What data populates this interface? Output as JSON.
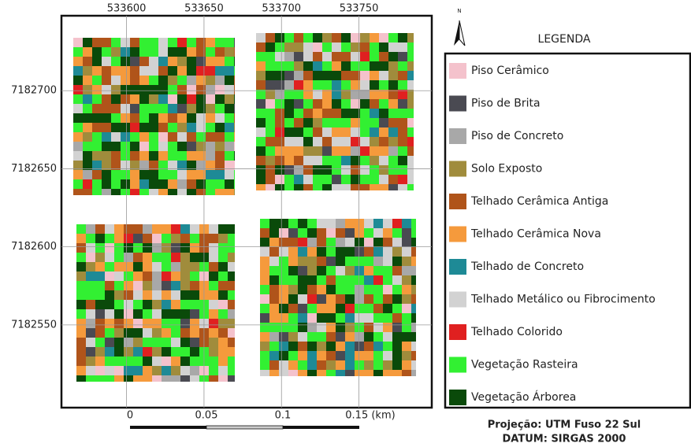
{
  "map": {
    "x_lim": [
      533558,
      533797
    ],
    "x_ticks": [
      533600,
      533650,
      533700,
      533750
    ],
    "y_lim": [
      7182497,
      7182748
    ],
    "y_ticks": [
      7182700,
      7182650,
      7182600,
      7182550
    ],
    "grid": true,
    "north_label": "N",
    "legend": {
      "title": "LEGENDA",
      "entries": [
        {
          "name": "Piso Cerâmico",
          "color": "#f4c2cc"
        },
        {
          "name": "Piso de Brita",
          "color": "#4a4a52"
        },
        {
          "name": "Piso de Concreto",
          "color": "#a8a8a8"
        },
        {
          "name": "Solo Exposto",
          "color": "#a08c3c"
        },
        {
          "name": "Telhado Cerâmica Antiga",
          "color": "#b0541a"
        },
        {
          "name": "Telhado Cerâmica Nova",
          "color": "#f59a3c"
        },
        {
          "name": "Telhado de Concreto",
          "color": "#1e8a96"
        },
        {
          "name": "Telhado Metálico ou Fibrocimento",
          "color": "#d2d2d2"
        },
        {
          "name": "Telhado Colorido",
          "color": "#e02020"
        },
        {
          "name": "Vegetação Rasteira",
          "color": "#32f032"
        },
        {
          "name": "Vegetação Árborea",
          "color": "#0a4a0a"
        }
      ]
    },
    "scale_bar": {
      "labels": [
        "0",
        "0.05",
        "0.1",
        "0.15 (km)"
      ]
    },
    "projection": [
      "Projeção: UTM Fuso 22 Sul",
      "DATUM: SIRGAS 2000"
    ]
  }
}
